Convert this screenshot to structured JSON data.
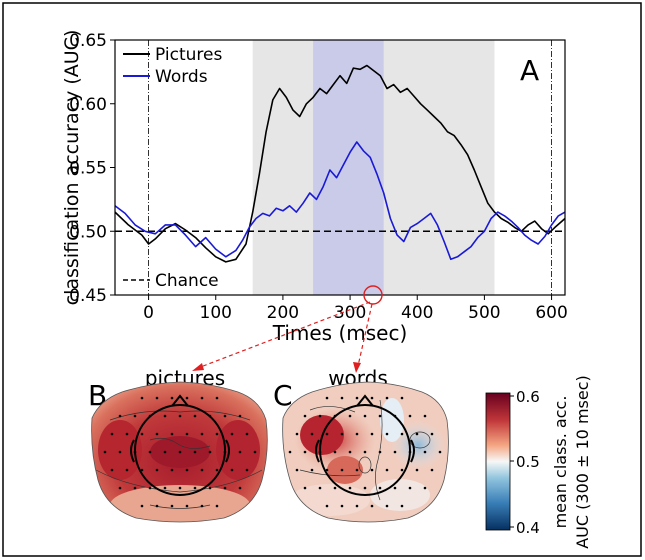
{
  "panels": {
    "a": "A",
    "b": "B",
    "c": "C"
  },
  "topomap_titles": {
    "pictures": "pictures",
    "words": "words"
  },
  "colorbar": {
    "label_line1": "mean class. acc.",
    "label_line2": "AUC (300 ± 10 msec)",
    "ticks": [
      "0.6",
      "0.5",
      "0.4"
    ],
    "colors": {
      "high": "#67001f",
      "mid": "#f7f7f7",
      "low": "#053061"
    }
  },
  "chart_data": {
    "type": "line",
    "xlabel": "Times (msec)",
    "ylabel": "classification accuracy (AUC)",
    "xlim": [
      -50,
      620
    ],
    "ylim": [
      0.45,
      0.65
    ],
    "xticks": [
      0,
      100,
      200,
      300,
      400,
      500,
      600
    ],
    "yticks": [
      0.45,
      0.5,
      0.55,
      0.6,
      0.65
    ],
    "xtick_labels": [
      "0",
      "100",
      "200",
      "300",
      "400",
      "500",
      "600"
    ],
    "ytick_labels": [
      "0.45",
      "0.50",
      "0.55",
      "0.60",
      "0.65"
    ],
    "legend": {
      "placement": "top-left",
      "entries": [
        "Pictures",
        "Words"
      ]
    },
    "legend_bottom": "Chance",
    "chance_level": 0.5,
    "vertical_markers": [
      0,
      600
    ],
    "highlight_grey": [
      155,
      515
    ],
    "highlight_blue": [
      245,
      350
    ],
    "marked_time": 300,
    "series": [
      {
        "name": "Pictures",
        "color": "#000000",
        "x": [
          -50,
          -30,
          -10,
          0,
          10,
          25,
          40,
          55,
          70,
          85,
          100,
          115,
          130,
          145,
          155,
          165,
          175,
          185,
          195,
          205,
          215,
          225,
          235,
          245,
          255,
          265,
          275,
          285,
          295,
          305,
          315,
          325,
          335,
          345,
          355,
          365,
          375,
          385,
          395,
          405,
          415,
          425,
          435,
          445,
          455,
          465,
          475,
          485,
          495,
          505,
          515,
          525,
          535,
          545,
          555,
          565,
          575,
          585,
          595,
          605,
          620
        ],
        "y": [
          0.515,
          0.505,
          0.497,
          0.49,
          0.494,
          0.502,
          0.506,
          0.501,
          0.495,
          0.487,
          0.48,
          0.476,
          0.478,
          0.49,
          0.515,
          0.545,
          0.578,
          0.603,
          0.612,
          0.605,
          0.595,
          0.59,
          0.6,
          0.605,
          0.612,
          0.608,
          0.615,
          0.622,
          0.616,
          0.628,
          0.627,
          0.63,
          0.626,
          0.622,
          0.612,
          0.615,
          0.609,
          0.612,
          0.606,
          0.6,
          0.595,
          0.59,
          0.585,
          0.578,
          0.575,
          0.568,
          0.56,
          0.548,
          0.535,
          0.522,
          0.515,
          0.51,
          0.507,
          0.503,
          0.5,
          0.505,
          0.508,
          0.502,
          0.498,
          0.503,
          0.51
        ]
      },
      {
        "name": "Words",
        "color": "#1a1ad6",
        "x": [
          -50,
          -35,
          -20,
          -5,
          10,
          25,
          40,
          55,
          70,
          85,
          100,
          115,
          130,
          140,
          150,
          160,
          170,
          180,
          190,
          200,
          210,
          220,
          230,
          240,
          250,
          260,
          270,
          280,
          290,
          300,
          310,
          320,
          330,
          340,
          350,
          360,
          370,
          380,
          390,
          400,
          410,
          420,
          430,
          440,
          450,
          460,
          470,
          480,
          490,
          500,
          510,
          520,
          530,
          540,
          550,
          560,
          570,
          580,
          590,
          600,
          610,
          620
        ],
        "y": [
          0.52,
          0.514,
          0.505,
          0.5,
          0.498,
          0.505,
          0.505,
          0.497,
          0.488,
          0.495,
          0.486,
          0.48,
          0.485,
          0.493,
          0.503,
          0.51,
          0.514,
          0.512,
          0.518,
          0.516,
          0.52,
          0.515,
          0.522,
          0.53,
          0.525,
          0.535,
          0.548,
          0.542,
          0.552,
          0.562,
          0.57,
          0.563,
          0.558,
          0.545,
          0.53,
          0.51,
          0.497,
          0.492,
          0.503,
          0.506,
          0.51,
          0.514,
          0.505,
          0.492,
          0.478,
          0.48,
          0.484,
          0.488,
          0.495,
          0.5,
          0.51,
          0.515,
          0.512,
          0.508,
          0.503,
          0.497,
          0.493,
          0.49,
          0.496,
          0.505,
          0.512,
          0.515
        ]
      }
    ]
  }
}
